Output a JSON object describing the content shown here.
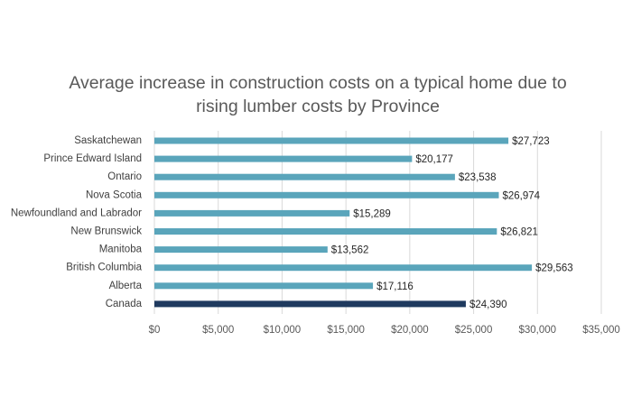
{
  "chart_data": {
    "type": "bar",
    "orientation": "horizontal",
    "title_lines": [
      "Average increase in construction costs on a typical home due to",
      "rising lumber costs by Province"
    ],
    "categories": [
      "Saskatchewan",
      "Prince Edward Island",
      "Ontario",
      "Nova Scotia",
      "Newfoundland and Labrador",
      "New Brunswick",
      "Manitoba",
      "British Columbia",
      "Alberta",
      "Canada"
    ],
    "values": [
      27723,
      20177,
      23538,
      26974,
      15289,
      26821,
      13562,
      29563,
      17116,
      24390
    ],
    "data_labels": [
      "$27,723",
      "$20,177",
      "$23,538",
      "$26,974",
      "$15,289",
      "$26,821",
      "$13,562",
      "$29,563",
      "$17,116",
      "$24,390"
    ],
    "x_ticks": [
      0,
      5000,
      10000,
      15000,
      20000,
      25000,
      30000,
      35000
    ],
    "x_tick_labels": [
      "$0",
      "$5,000",
      "$10,000",
      "$15,000",
      "$20,000",
      "$25,000",
      "$30,000",
      "$35,000"
    ],
    "xlim": [
      0,
      35000
    ],
    "grid": true,
    "legend": "none",
    "colors": {
      "province_bar": "#5aa5bb",
      "canada_bar": "#1f3a5f"
    },
    "highlight_category": "Canada"
  }
}
